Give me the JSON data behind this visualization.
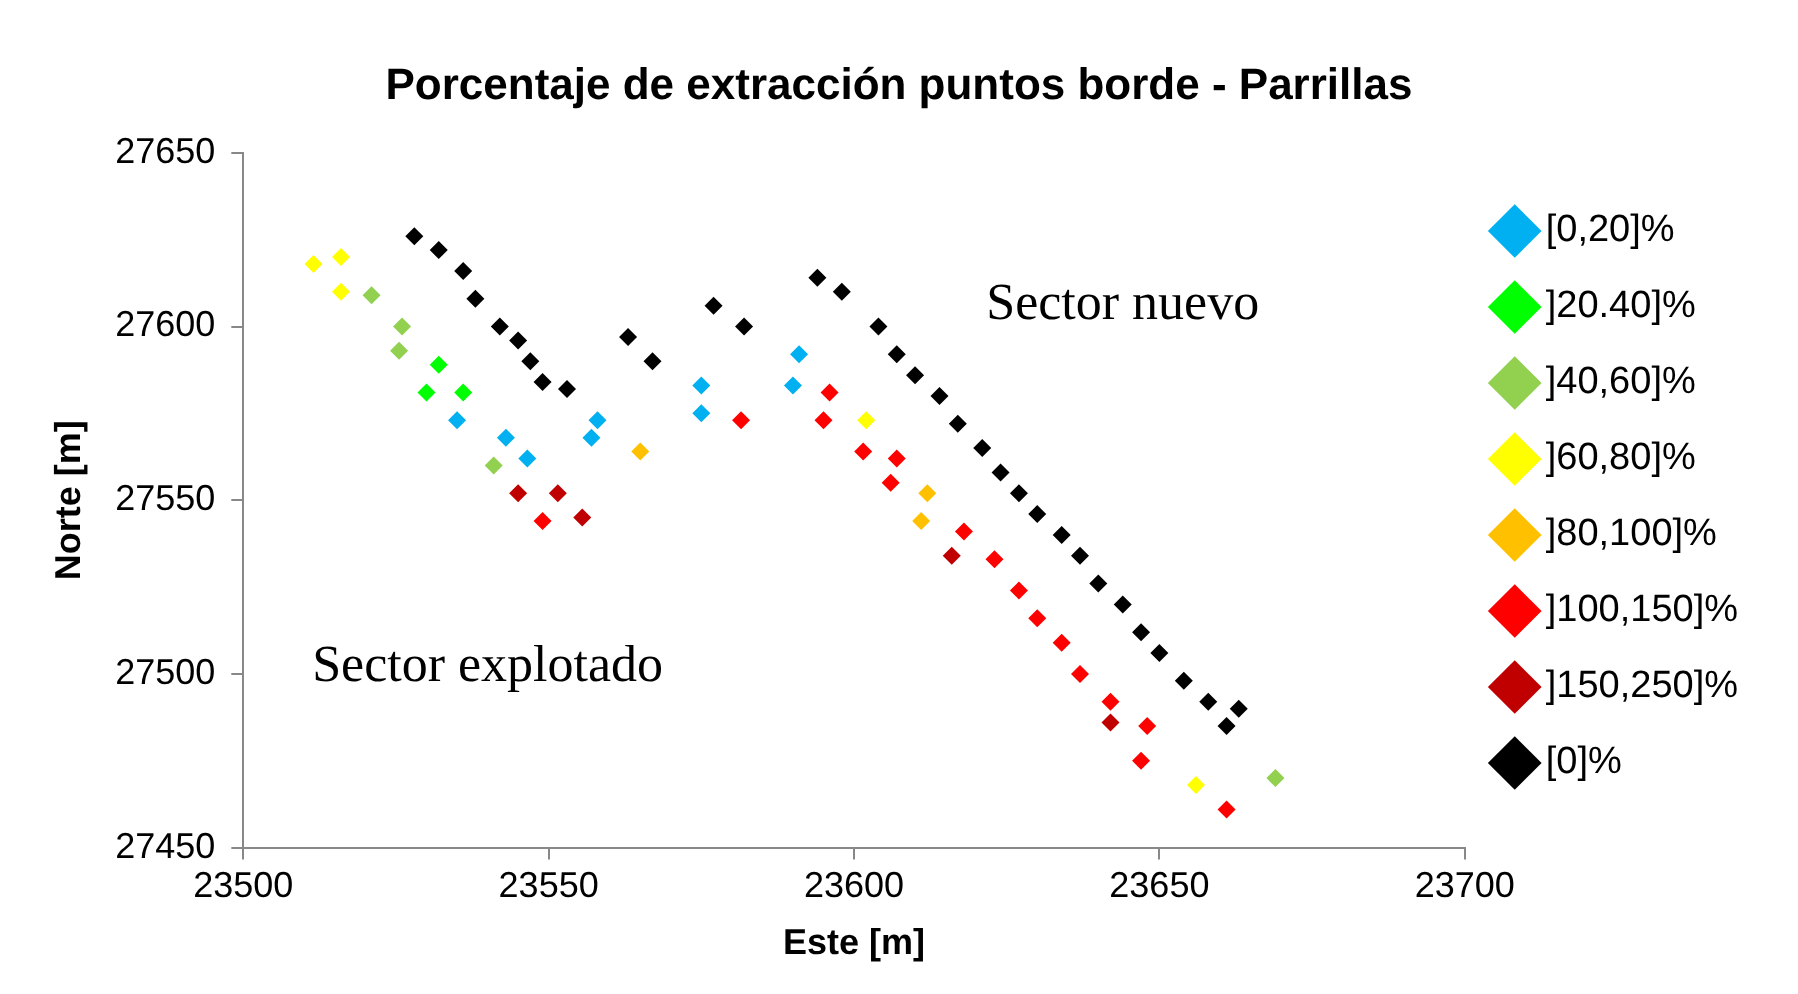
{
  "chart_data": {
    "type": "scatter",
    "title": "Porcentaje de extracción puntos borde - Parrillas",
    "xlabel": "Este [m]",
    "ylabel": "Norte [m]",
    "xlim": [
      23500,
      23700
    ],
    "xticks": [
      23500,
      23550,
      23600,
      23650,
      23700
    ],
    "ylim": [
      27450,
      27650
    ],
    "yticks": [
      27450,
      27500,
      27550,
      27600,
      27650
    ],
    "grid": false,
    "legend": "right",
    "marker": "diamond",
    "annotations": [
      "Sector nuevo",
      "Sector explotado"
    ],
    "series": [
      {
        "name": "[0,20]%",
        "color": "#00b0f0",
        "x": [
          23535,
          23543,
          23546.5,
          23558,
          23557,
          23575,
          23575,
          23591,
          23590
        ],
        "values": [
          27573,
          27568,
          27562,
          27573,
          27568,
          27583,
          27575,
          27592,
          27583
        ]
      },
      {
        "name": "]20.40]%",
        "color": "#00ff00",
        "x": [
          23532,
          23530,
          23536
        ],
        "values": [
          27589,
          27581,
          27581
        ]
      },
      {
        "name": "]40,60]%",
        "color": "#92d050",
        "x": [
          23521,
          23526,
          23525.5,
          23541,
          23669
        ],
        "values": [
          27609,
          27600,
          27593,
          27560,
          27470
        ]
      },
      {
        "name": "]60,80]%",
        "color": "#ffff00",
        "x": [
          23511.5,
          23516,
          23516,
          23602,
          23656
        ],
        "values": [
          27618,
          27620,
          27610,
          27573,
          27468
        ]
      },
      {
        "name": "]80,100]%",
        "color": "#ffc000",
        "x": [
          23565,
          23612,
          23611
        ],
        "values": [
          27564,
          27552,
          27544
        ]
      },
      {
        "name": "]100,150]%",
        "color": "#ff0000",
        "x": [
          23549,
          23581.5,
          23596,
          23595,
          23601.5,
          23607,
          23606,
          23618,
          23623,
          23627,
          23630,
          23634,
          23637,
          23642,
          23648,
          23647,
          23661
        ],
        "values": [
          27544,
          27573,
          27581,
          27573,
          27564,
          27562,
          27555,
          27541,
          27533,
          27524,
          27516,
          27509,
          27500,
          27492,
          27485,
          27475,
          27461
        ]
      },
      {
        "name": "]150,250]%",
        "color": "#c00000",
        "x": [
          23545,
          23551.5,
          23555.5,
          23616,
          23642
        ],
        "values": [
          27552,
          27552,
          27545,
          27534,
          27486
        ]
      },
      {
        "name": "[0]%",
        "color": "#000000",
        "x": [
          23528,
          23532,
          23536,
          23538,
          23542,
          23545,
          23547,
          23549,
          23553,
          23563,
          23567,
          23577,
          23582,
          23594,
          23598,
          23604,
          23607,
          23610,
          23614,
          23617,
          23621,
          23624,
          23627,
          23630,
          23634,
          23637,
          23640,
          23644,
          23647,
          23650,
          23654,
          23658,
          23661,
          23663
        ],
        "values": [
          27626,
          27622,
          27616,
          27608,
          27600,
          27596,
          27590,
          27584,
          27582,
          27597,
          27590,
          27606,
          27600,
          27614,
          27610,
          27600,
          27592,
          27586,
          27580,
          27572,
          27565,
          27558,
          27552,
          27546,
          27540,
          27534,
          27526,
          27520,
          27512,
          27506,
          27498,
          27492,
          27485,
          27490
        ]
      }
    ]
  }
}
